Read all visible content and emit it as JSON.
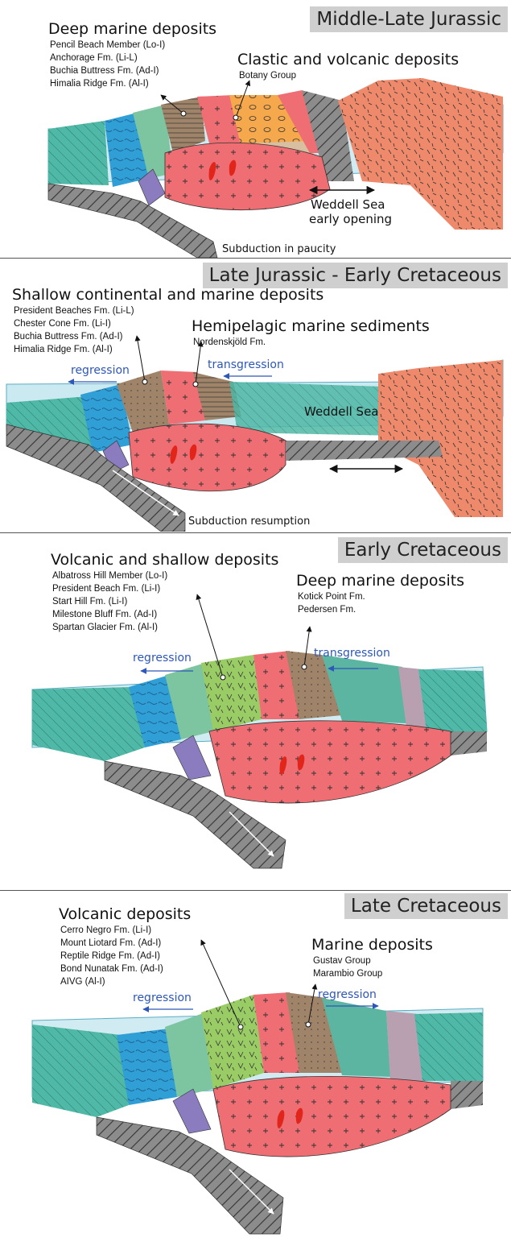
{
  "colors": {
    "sea": "#a9dbe6",
    "teal": "#4fb8a6",
    "blue": "#2f9fd6",
    "green_light": "#7cc5a0",
    "green_volcanic": "#9acc66",
    "brown": "#a0846a",
    "tan": "#d8bfa0",
    "orange": "#f5a84c",
    "salmon": "#ee8a6b",
    "pink_granite": "#ee6e73",
    "purple": "#8b7bbf",
    "gray_slab": "#8c8c8c",
    "red_intrusion": "#e1251b",
    "arrow_blue": "#2d57b8"
  },
  "panels": [
    {
      "period": "Middle-Late Jurassic",
      "heading_left": "Deep marine deposits",
      "formations_left": [
        "Pencil Beach Member (Lo-I)",
        "Anchorage Fm. (Li-L)",
        "Buchia Buttress Fm. (Ad-I)",
        "Himalia Ridge Fm. (Al-I)"
      ],
      "heading_right": "Clastic and volcanic deposits",
      "formations_right": [
        "Botany Group"
      ],
      "notes": [
        "Weddell Sea",
        "early opening",
        "Subduction in paucity"
      ]
    },
    {
      "period": "Late Jurassic - Early Cretaceous",
      "heading_left": "Shallow continental and marine deposits",
      "formations_left": [
        "President Beaches Fm. (Li-L)",
        "Chester Cone Fm. (Li-I)",
        "Buchia Buttress Fm. (Ad-I)",
        "Himalia Ridge Fm. (Al-I)"
      ],
      "heading_right": "Hemipelagic marine sediments",
      "formations_right": [
        "Nordenskjöld Fm."
      ],
      "arrow_left": "regression",
      "arrow_right": "transgression",
      "notes": [
        "Weddell Sea",
        "Subduction resumption"
      ]
    },
    {
      "period": "Early Cretaceous",
      "heading_left": "Volcanic and shallow deposits",
      "formations_left": [
        "Albatross Hill Member (Lo-I)",
        "President Beach Fm. (Li-I)",
        "Start Hill Fm. (Li-I)",
        "Milestone Bluff Fm. (Ad-I)",
        "Spartan Glacier Fm. (Al-I)"
      ],
      "heading_right": "Deep marine deposits",
      "formations_right": [
        "Kotick Point Fm.",
        "Pedersen Fm."
      ],
      "arrow_left": "regression",
      "arrow_right": "transgression"
    },
    {
      "period": "Late Cretaceous",
      "heading_left": "Volcanic deposits",
      "formations_left": [
        "Cerro Negro Fm. (Li-I)",
        "Mount Liotard Fm. (Ad-I)",
        "Reptile Ridge Fm. (Ad-I)",
        "Bond Nunatak Fm. (Ad-I)",
        "AIVG (Al-I)"
      ],
      "heading_right": "Marine deposits",
      "formations_right": [
        "Gustav Group",
        "Marambio Group"
      ],
      "arrow_left": "regression",
      "arrow_right": "regression"
    }
  ]
}
